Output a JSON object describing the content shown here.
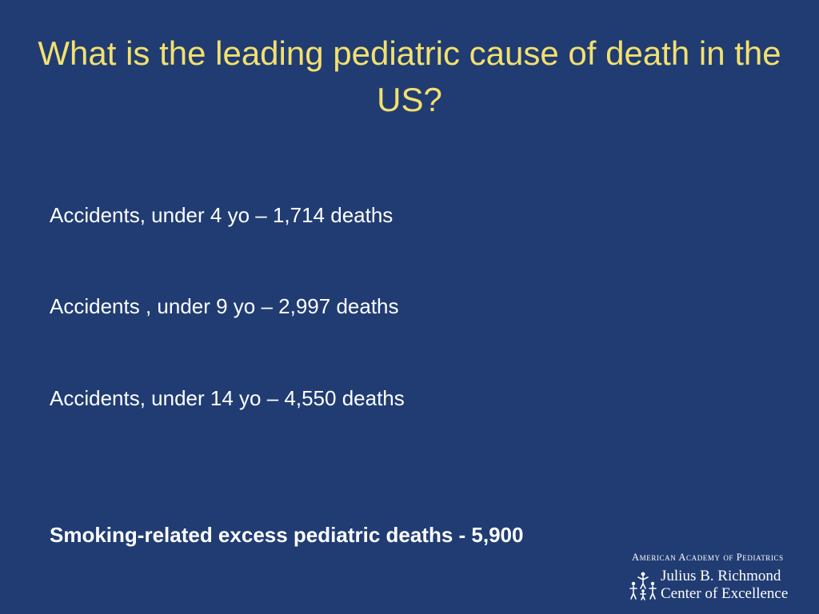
{
  "slide": {
    "title": "What is the leading pediatric cause of death in the US?",
    "stats": [
      "Accidents, under 4 yo – 1,714 deaths",
      "Accidents , under 9 yo – 2,997 deaths",
      "Accidents, under 14 yo – 4,550 deaths"
    ],
    "highlight": "Smoking-related excess pediatric deaths - 5,900"
  },
  "logo": {
    "organization": "American Academy of Pediatrics",
    "name": "Julius B. Richmond",
    "subtitle": "Center of Excellence",
    "icon": "family-figures-icon"
  },
  "colors": {
    "background": "#203c73",
    "title": "#f3e06e",
    "text": "#ffffff"
  }
}
